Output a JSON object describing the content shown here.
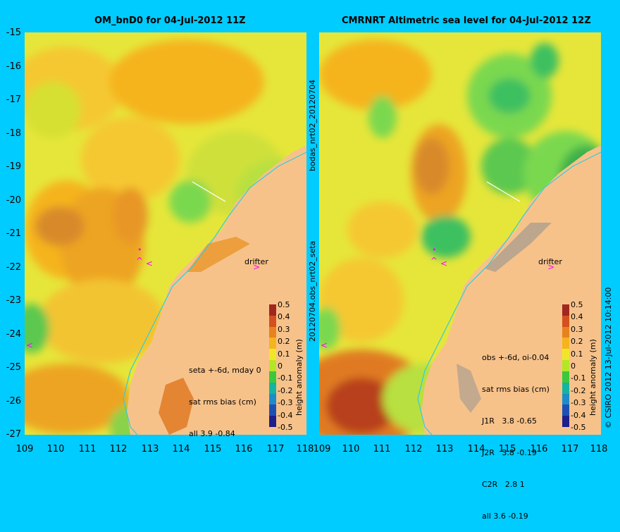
{
  "left_panel": {
    "title": "OM_bnD0 for 04-Jul-2012 11Z",
    "info_lines": [
      "seta +-6d, mday 0",
      "sat rms bias (cm)",
      "all 3.9 -0.84"
    ],
    "drifter_label": "drifter"
  },
  "right_panel": {
    "title": "CMRNRT Altimetric sea level  for 04-Jul-2012 12Z",
    "info_lines": [
      "obs +-6d, oi-0.04",
      "sat rms bias (cm)",
      "J1R   3.8 -0.65",
      "J2R   3.8 -0.19",
      "C2R   2.8 1",
      "all 3.6 -0.19"
    ],
    "drifter_label": "drifter"
  },
  "y_ticks": [
    "-15",
    "-16",
    "-17",
    "-18",
    "-19",
    "-20",
    "-21",
    "-22",
    "-23",
    "-24",
    "-25",
    "-26",
    "-27"
  ],
  "x_ticks": [
    "109",
    "110",
    "111",
    "112",
    "113",
    "114",
    "115",
    "116",
    "117",
    "118"
  ],
  "middle_labels": {
    "upper": "bodas_nrt02_20120704",
    "lower": "20120704.obs_nrt02_seta"
  },
  "right_edge_label": "© CSIRO 2012   13-Jul-2012 10:14:00",
  "colorbar": {
    "title": "height anomaly (m)",
    "ticks": [
      "0.5",
      "0.4",
      "0.3",
      "0.2",
      "0.1",
      "0",
      "-0.1",
      "-0.2",
      "-0.3",
      "-0.4",
      "-0.5"
    ],
    "colors": [
      "#a0281e",
      "#d4501e",
      "#e8821e",
      "#f5b41e",
      "#f0e628",
      "#b4e628",
      "#3cc83c",
      "#14b4a0",
      "#1e8cc8",
      "#1e50b4",
      "#1e1e8c"
    ]
  },
  "colors": {
    "background": "#00ccff",
    "land": "#f7c28a",
    "coast_track": "#33ccdd",
    "marker": "#ff00ff"
  }
}
